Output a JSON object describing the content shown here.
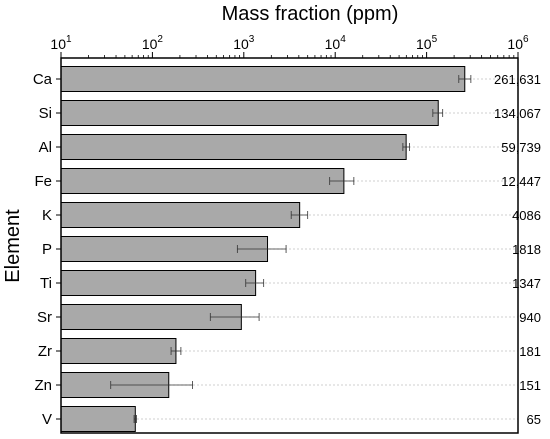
{
  "chart_data": {
    "type": "bar",
    "orientation": "horizontal",
    "title": "Mass fraction (ppm)",
    "xlabel": "Mass fraction (ppm)",
    "ylabel": "Element",
    "x_scale": "log",
    "xlim": [
      10,
      1000000
    ],
    "x_ticks": [
      {
        "base": "10",
        "exp": "1",
        "value": 10
      },
      {
        "base": "10",
        "exp": "2",
        "value": 100
      },
      {
        "base": "10",
        "exp": "3",
        "value": 1000
      },
      {
        "base": "10",
        "exp": "4",
        "value": 10000
      },
      {
        "base": "10",
        "exp": "5",
        "value": 100000
      },
      {
        "base": "10",
        "exp": "6",
        "value": 1000000
      }
    ],
    "x_axis_position": "top",
    "grid": "horizontal dotted",
    "bar_color": "#a9a9a9",
    "categories": [
      "Ca",
      "Si",
      "Al",
      "Fe",
      "K",
      "P",
      "Ti",
      "Sr",
      "Zr",
      "Zn",
      "V"
    ],
    "values": [
      261631,
      134067,
      59739,
      12447,
      4086,
      1818,
      1347,
      940,
      181,
      151,
      65
    ],
    "value_labels": [
      "261,631",
      "134,067",
      "59,739",
      "12,447",
      "4086",
      "1818",
      "1347",
      "940",
      "181",
      "151",
      "65"
    ],
    "error_low": [
      225000,
      117000,
      55000,
      8700,
      3300,
      850,
      1050,
      430,
      160,
      35,
      63
    ],
    "error_high": [
      305000,
      150000,
      65000,
      16000,
      5000,
      2900,
      1650,
      1470,
      205,
      275,
      67
    ]
  }
}
